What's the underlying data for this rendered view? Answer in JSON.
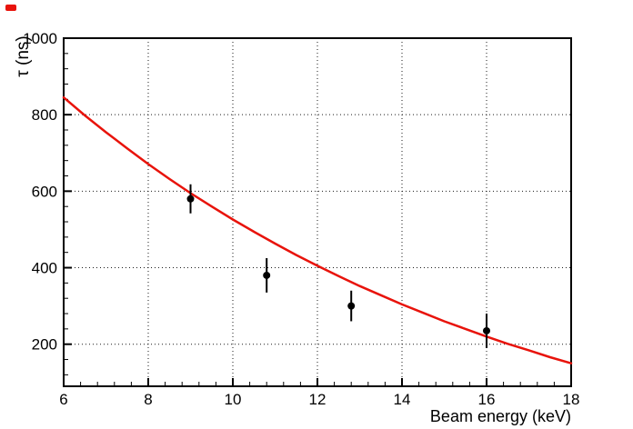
{
  "canvas": {
    "background": "#ffffff",
    "corner_marker_color": "#e8130b"
  },
  "chart_data": {
    "type": "scatter",
    "title": "",
    "xlabel": "Beam energy (keV)",
    "ylabel": "τ (ns)",
    "xlim": [
      6,
      18
    ],
    "ylim": [
      90,
      1000
    ],
    "x_major_ticks": [
      6,
      8,
      10,
      12,
      14,
      16,
      18
    ],
    "x_minor_step": 0.4,
    "y_major_ticks": [
      200,
      400,
      600,
      800,
      1000
    ],
    "y_minor_step": 40,
    "grid": true,
    "grid_style": "dotted",
    "grid_color": "#1a1a1a",
    "axis_color": "#000000",
    "legend": "none",
    "series": [
      {
        "name": "fit-curve",
        "type": "line",
        "color": "#e8130b",
        "x": [
          6,
          6.5,
          7,
          7.5,
          8,
          8.5,
          9,
          9.5,
          10,
          10.5,
          11,
          11.5,
          12,
          12.5,
          13,
          13.5,
          14,
          14.5,
          15,
          15.5,
          16,
          16.5,
          17,
          17.5,
          18
        ],
        "y": [
          845,
          798,
          754,
          712,
          671,
          632,
          595,
          560,
          526,
          494,
          463,
          433,
          405,
          378,
          352,
          328,
          304,
          282,
          260,
          240,
          220,
          201,
          184,
          166,
          150
        ]
      },
      {
        "name": "data-points",
        "type": "scatter",
        "color": "#000000",
        "x": [
          9.0,
          10.8,
          12.8,
          16.0
        ],
        "y": [
          580,
          380,
          300,
          235
        ],
        "yerr": [
          38,
          45,
          40,
          45
        ]
      }
    ]
  }
}
